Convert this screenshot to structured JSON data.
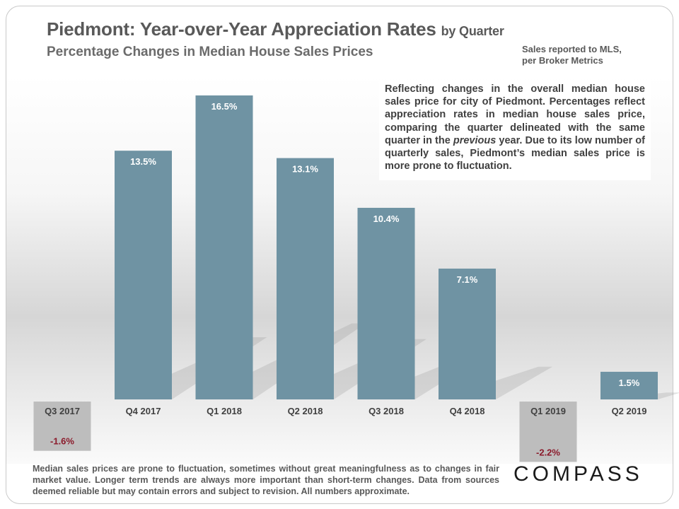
{
  "header": {
    "title_main": "Piedmont: Year-over-Year Appreciation Rates",
    "title_suffix": "by Quarter",
    "subtitle": "Percentage Changes in Median House Sales Prices",
    "source_line1": "Sales reported to MLS,",
    "source_line2": "per Broker Metrics"
  },
  "note": {
    "part1": "Reflecting changes in the overall median house sales price for city of Piedmont. Percentages reflect appreciation rates in median house sales price, comparing the quarter delineated with the same quarter in the ",
    "emphasis": "previous",
    "part2": " year. Due to its low number of quarterly sales, Piedmont’s median sales price is more prone to fluctuation."
  },
  "footer": {
    "disclaimer": "Median sales prices are prone to fluctuation, sometimes without great meaningfulness as to changes in fair market value. Longer term trends are always more important than short-term changes. Data from sources deemed reliable but may contain errors and subject to revision. All numbers approximate.",
    "brand": "COMPASS"
  },
  "colors": {
    "bar": "#6f93a3",
    "negative_box": "#bdbdbd",
    "negative_text": "#8b1a2b",
    "label_dark": "#404040",
    "label_on_bar": "#ffffff"
  },
  "chart_data": {
    "type": "bar",
    "categories": [
      "Q3 2017",
      "Q4 2017",
      "Q1 2018",
      "Q2 2018",
      "Q3 2018",
      "Q4 2018",
      "Q1 2019",
      "Q2 2019"
    ],
    "values": [
      -1.6,
      13.5,
      16.5,
      13.1,
      10.4,
      7.1,
      -2.2,
      1.5
    ],
    "value_labels": [
      "-1.6%",
      "13.5%",
      "16.5%",
      "13.1%",
      "10.4%",
      "7.1%",
      "-2.2%",
      "1.5%"
    ],
    "title": "Piedmont: Year-over-Year Appreciation Rates by Quarter",
    "xlabel": "",
    "ylabel": "",
    "grid": false,
    "legend": "none"
  }
}
